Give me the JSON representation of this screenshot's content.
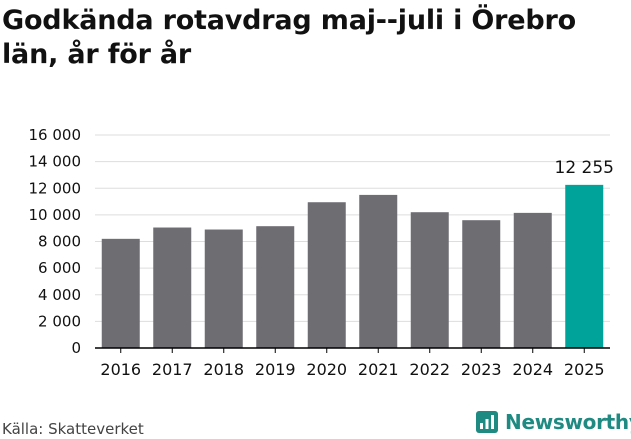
{
  "title": "Godkända rotavdrag maj--juli i Örebro län, år för år",
  "source": "Källa: Skatteverket",
  "brand": {
    "name": "Newsworthy",
    "icon": "newsworthy-logo-icon",
    "color": "#1f8a82"
  },
  "colors": {
    "bar": "#6e6d72",
    "highlight": "#00a39a",
    "grid": "#dddddd",
    "axis": "#000000"
  },
  "chart_data": {
    "type": "bar",
    "categories": [
      "2016",
      "2017",
      "2018",
      "2019",
      "2020",
      "2021",
      "2022",
      "2023",
      "2024",
      "2025"
    ],
    "values": [
      8200,
      9050,
      8900,
      9150,
      10950,
      11500,
      10200,
      9600,
      10150,
      12255
    ],
    "highlight_index": 9,
    "data_labels": [
      {
        "index": 9,
        "text": "12 255"
      }
    ],
    "yticks": [
      "0",
      "2 000",
      "4 000",
      "6 000",
      "8 000",
      "10 000",
      "12 000",
      "14 000",
      "16 000"
    ],
    "ylim": [
      0,
      16000
    ],
    "grid": true,
    "xlabel": "",
    "ylabel": ""
  }
}
